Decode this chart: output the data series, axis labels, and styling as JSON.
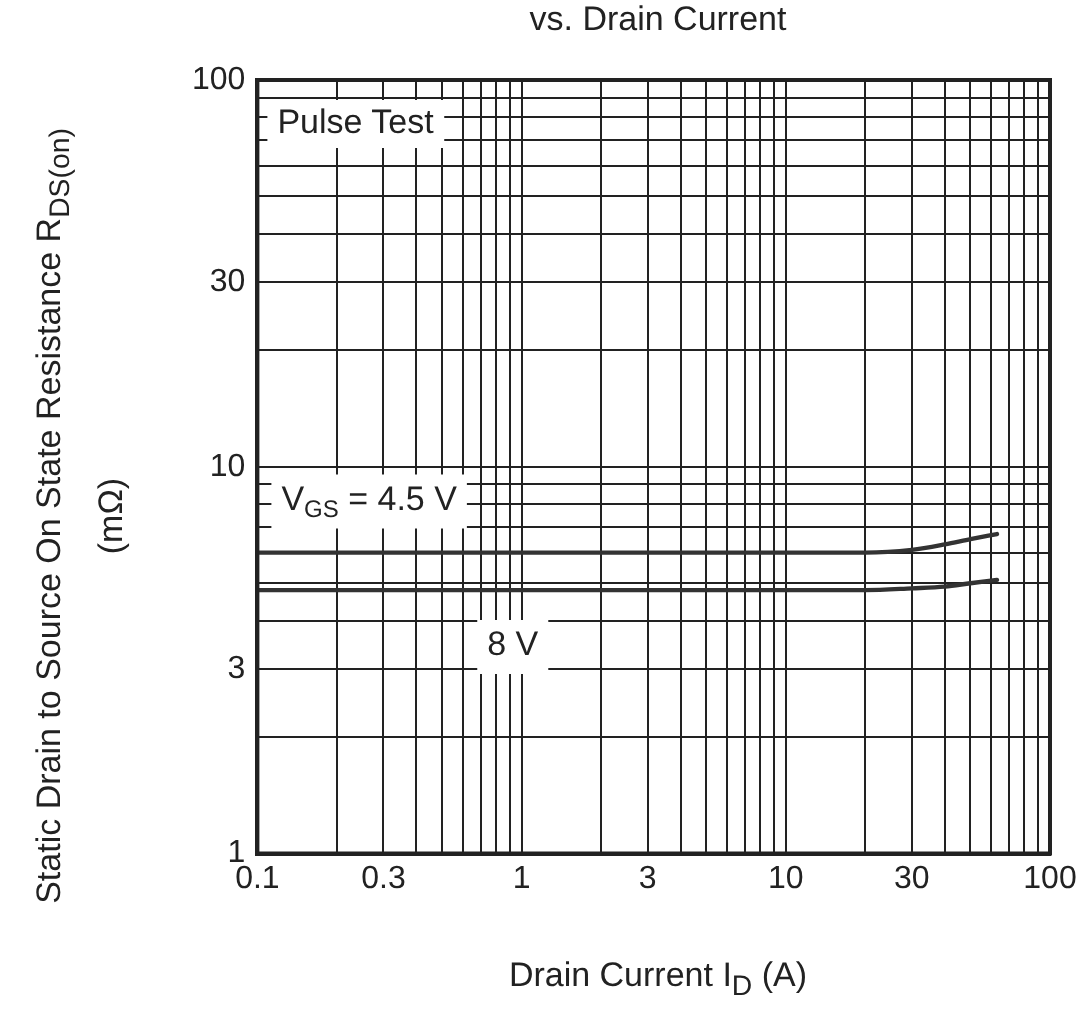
{
  "chart_data": {
    "type": "line",
    "title": "vs. Drain Current",
    "xlabel": "Drain Current  I$_{D}$  (A)",
    "ylabel": "Static Drain to Source On State Resistance  R$_{DS(on)}$  (mΩ)",
    "log": "xy",
    "grid": true,
    "marker": "none",
    "line_style": "solid",
    "legend": false,
    "x": [
      0.1,
      1,
      10,
      20,
      30,
      40,
      50,
      63
    ],
    "series": [
      {
        "name": "V$_{GS}$ = 4.5 V",
        "color": "#333333",
        "values": [
          6.0,
          6.0,
          6.0,
          6.0,
          6.1,
          6.3,
          6.5,
          6.7
        ]
      },
      {
        "name": "8 V",
        "color": "#333333",
        "values": [
          4.8,
          4.8,
          4.8,
          4.8,
          4.85,
          4.9,
          5.0,
          5.1
        ]
      }
    ],
    "xlim": [
      0.1,
      100
    ],
    "ylim": [
      1,
      100
    ],
    "xticks": [
      0.1,
      {
        "value": 0.2,
        "label": null
      },
      0.3,
      {
        "value": 0.4,
        "label": null
      },
      {
        "value": 0.5,
        "label": null
      },
      {
        "value": 0.6,
        "label": null
      },
      {
        "value": 0.7,
        "label": null
      },
      {
        "value": 0.8,
        "label": null
      },
      {
        "value": 0.9,
        "label": null
      },
      1,
      {
        "value": 2,
        "label": null
      },
      3,
      {
        "value": 4,
        "label": null
      },
      {
        "value": 5,
        "label": null
      },
      {
        "value": 6,
        "label": null
      },
      {
        "value": 7,
        "label": null
      },
      {
        "value": 8,
        "label": null
      },
      {
        "value": 9,
        "label": null
      },
      10,
      {
        "value": 20,
        "label": null
      },
      30,
      {
        "value": 40,
        "label": null
      },
      {
        "value": 50,
        "label": null
      },
      {
        "value": 60,
        "label": null
      },
      {
        "value": 70,
        "label": null
      },
      {
        "value": 80,
        "label": null
      },
      {
        "value": 90,
        "label": null
      },
      100
    ],
    "yticks": [
      1,
      {
        "value": 2,
        "label": null
      },
      3,
      {
        "value": 4,
        "label": null
      },
      {
        "value": 5,
        "label": null
      },
      {
        "value": 6,
        "label": null
      },
      {
        "value": 7,
        "label": null
      },
      {
        "value": 8,
        "label": null
      },
      {
        "value": 9,
        "label": null
      },
      10,
      {
        "value": 20,
        "label": null
      },
      30,
      {
        "value": 40,
        "label": null
      },
      {
        "value": 50,
        "label": null
      },
      {
        "value": 60,
        "label": null
      },
      {
        "value": 70,
        "label": null
      },
      {
        "value": 80,
        "label": null
      },
      {
        "value": 90,
        "label": null
      },
      100
    ],
    "annotations": [
      "Pulse Test"
    ]
  }
}
